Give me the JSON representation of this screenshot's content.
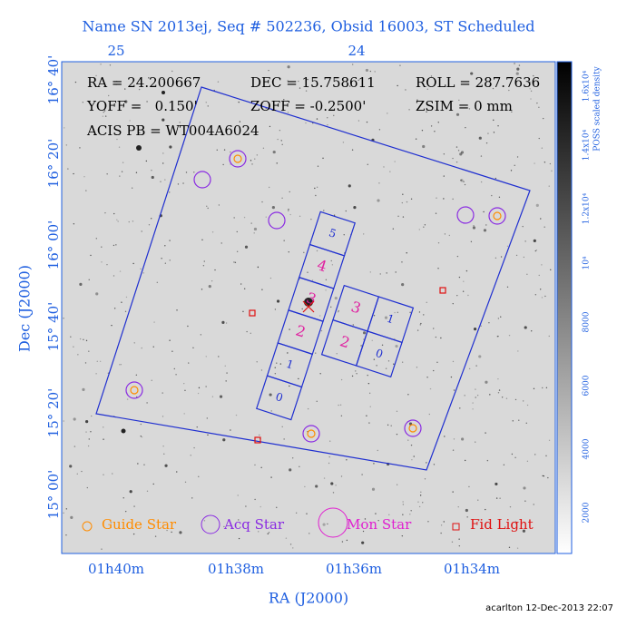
{
  "title": "Name SN 2013ej, Seq # 502236, Obsid 16003, ST Scheduled",
  "axes": {
    "x_label": "RA (J2000)",
    "y_label": "Dec (J2000)",
    "top_ticks": [
      "25",
      "24"
    ],
    "bottom_ticks": [
      "01h40m",
      "01h38m",
      "01h36m",
      "01h34m"
    ],
    "left_ticks": [
      "16° 40'",
      "16° 20'",
      "16° 00'",
      "15° 40'",
      "15° 20'",
      "15° 00'"
    ]
  },
  "colorbar": {
    "label": "POSS scaled density",
    "ticks": [
      "2000",
      "4000",
      "6000",
      "8000",
      "10⁴",
      "1.2x10⁴",
      "1.4x10⁴",
      "1.6x10⁴"
    ]
  },
  "info": {
    "ra": "RA = 24.200667",
    "dec": "DEC = 15.758611",
    "roll": "ROLL = 287.7636",
    "yoff": "YOFF =   0.150'",
    "zoff": "ZOFF = -0.2500'",
    "zsim": "ZSIM = 0 mm",
    "acis": "ACIS PB = WT004A6024"
  },
  "chips": {
    "s_array": [
      "5",
      "4",
      "3",
      "2",
      "1",
      "0"
    ],
    "i_array": [
      "3",
      "1",
      "2",
      "0"
    ]
  },
  "legend": [
    "Guide Star",
    "Acq Star",
    "Mon Star",
    "Fid Light"
  ],
  "footer": "acarlton 12-Dec-2013 22:07"
}
